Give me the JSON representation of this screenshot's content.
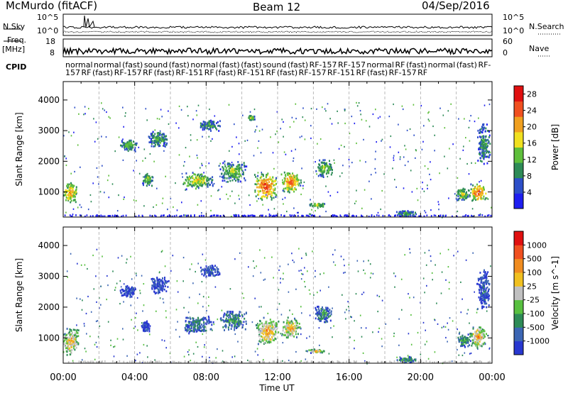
{
  "header": {
    "station": "McMurdo (fitACF)",
    "beam": "Beam 12",
    "date": "04/Sep/2016"
  },
  "strip_labels": {
    "n_sky": "N.Sky",
    "n_search": "N.Search",
    "freq": "Freq.",
    "freq_unit": "[MHz]",
    "nave": "Nave",
    "cpid": "CPID"
  },
  "strip_ticks": {
    "noise_left": [
      "10^5",
      "10^0"
    ],
    "noise_right": [
      "10^5",
      "10^0"
    ],
    "freq_left": [
      "18",
      "8"
    ],
    "nave_right": [
      "60",
      "0"
    ]
  },
  "cpid_text": "normal normal (fast) sound (fast) normal (fast) (fast) sound (fast) RF-157 RF-157 normal RF (fast) normal (fast) RF-157 RF (fast) RF-157 RF (fast) RF-151 RF (fast) RF-151 RF (fast) RF-157 RF-151 RF (fast) RF-157 RF",
  "chart_data": [
    {
      "type": "heatmap",
      "name": "power",
      "ylabel": "Slant Range [km]",
      "xlabel": "Time UT",
      "x_ticks": [
        "00:00",
        "04:00",
        "08:00",
        "12:00",
        "16:00",
        "20:00",
        "00:00"
      ],
      "xlim_hours": [
        0,
        24
      ],
      "y_ticks": [
        1000,
        2000,
        3000,
        4000
      ],
      "ylim": [
        180,
        4600
      ],
      "colorbar": {
        "label": "Power [dB]",
        "ticks": [
          4,
          8,
          12,
          16,
          20,
          24,
          28
        ],
        "range": [
          0,
          30
        ],
        "colors": [
          "#1e1ef0",
          "#2d4fc8",
          "#2e8b57",
          "#5fbf3c",
          "#f0e020",
          "#f0a020",
          "#f05020",
          "#e01010"
        ]
      },
      "blobs": [
        {
          "t": 0.35,
          "r": 1000,
          "dt": 0.45,
          "dr": 350,
          "mag": 0.75
        },
        {
          "t": 3.6,
          "r": 2550,
          "dt": 0.5,
          "dr": 200,
          "mag": 0.45
        },
        {
          "t": 4.7,
          "r": 1450,
          "dt": 0.3,
          "dr": 250,
          "mag": 0.55
        },
        {
          "t": 5.3,
          "r": 2750,
          "dt": 0.6,
          "dr": 300,
          "mag": 0.4
        },
        {
          "t": 7.5,
          "r": 1400,
          "dt": 0.9,
          "dr": 300,
          "mag": 0.6
        },
        {
          "t": 8.2,
          "r": 3200,
          "dt": 0.6,
          "dr": 200,
          "mag": 0.35
        },
        {
          "t": 10.5,
          "r": 3450,
          "dt": 0.2,
          "dr": 80,
          "mag": 0.6
        },
        {
          "t": 9.5,
          "r": 1700,
          "dt": 0.8,
          "dr": 350,
          "mag": 0.5
        },
        {
          "t": 11.3,
          "r": 1200,
          "dt": 0.7,
          "dr": 450,
          "mag": 0.9
        },
        {
          "t": 12.7,
          "r": 1350,
          "dt": 0.6,
          "dr": 350,
          "mag": 0.85
        },
        {
          "t": 14.6,
          "r": 1800,
          "dt": 0.5,
          "dr": 300,
          "mag": 0.5
        },
        {
          "t": 14.2,
          "r": 600,
          "dt": 0.5,
          "dr": 60,
          "mag": 0.6
        },
        {
          "t": 19.2,
          "r": 320,
          "dt": 0.6,
          "dr": 100,
          "mag": 0.45
        },
        {
          "t": 22.3,
          "r": 950,
          "dt": 0.4,
          "dr": 250,
          "mag": 0.55
        },
        {
          "t": 23.2,
          "r": 1000,
          "dt": 0.5,
          "dr": 300,
          "mag": 0.9
        },
        {
          "t": 23.5,
          "r": 2600,
          "dt": 0.4,
          "dr": 700,
          "mag": 0.35
        }
      ]
    },
    {
      "type": "heatmap",
      "name": "velocity",
      "ylabel": "Slant Range [km]",
      "xlabel": "Time UT",
      "x_ticks": [
        "00:00",
        "04:00",
        "08:00",
        "12:00",
        "16:00",
        "20:00",
        "00:00"
      ],
      "xlim_hours": [
        0,
        24
      ],
      "y_ticks": [
        1000,
        2000,
        3000,
        4000
      ],
      "ylim": [
        180,
        4600
      ],
      "colorbar": {
        "label": "Velocity [m s^-1]",
        "ticks": [
          "1000",
          "500",
          "100",
          "25",
          "-25",
          "-100",
          "-500",
          "-1000"
        ],
        "colors": [
          "#2838d0",
          "#3c66b4",
          "#2e8b57",
          "#58c040",
          "#c0c0c0",
          "#f0c020",
          "#f08c20",
          "#f05020",
          "#e01010"
        ]
      },
      "blobs": [
        {
          "t": 0.4,
          "r": 900,
          "dt": 0.5,
          "dr": 450,
          "mag": 0.7
        },
        {
          "t": 3.6,
          "r": 2550,
          "dt": 0.5,
          "dr": 200,
          "mag": 0.1
        },
        {
          "t": 4.6,
          "r": 1400,
          "dt": 0.25,
          "dr": 200,
          "mag": 0.05
        },
        {
          "t": 5.3,
          "r": 2750,
          "dt": 0.6,
          "dr": 300,
          "mag": 0.1
        },
        {
          "t": 7.5,
          "r": 1450,
          "dt": 0.9,
          "dr": 300,
          "mag": 0.25
        },
        {
          "t": 8.2,
          "r": 3200,
          "dt": 0.6,
          "dr": 200,
          "mag": 0.15
        },
        {
          "t": 9.5,
          "r": 1600,
          "dt": 0.8,
          "dr": 350,
          "mag": 0.3
        },
        {
          "t": 11.4,
          "r": 1250,
          "dt": 0.7,
          "dr": 450,
          "mag": 0.75
        },
        {
          "t": 12.7,
          "r": 1350,
          "dt": 0.6,
          "dr": 350,
          "mag": 0.7
        },
        {
          "t": 14.5,
          "r": 1800,
          "dt": 0.5,
          "dr": 300,
          "mag": 0.3
        },
        {
          "t": 14.1,
          "r": 600,
          "dt": 0.5,
          "dr": 60,
          "mag": 0.65
        },
        {
          "t": 19.2,
          "r": 320,
          "dt": 0.6,
          "dr": 100,
          "mag": 0.35
        },
        {
          "t": 22.4,
          "r": 950,
          "dt": 0.4,
          "dr": 250,
          "mag": 0.35
        },
        {
          "t": 23.2,
          "r": 1050,
          "dt": 0.5,
          "dr": 350,
          "mag": 0.75
        },
        {
          "t": 23.5,
          "r": 2600,
          "dt": 0.4,
          "dr": 700,
          "mag": 0.15
        }
      ]
    }
  ]
}
